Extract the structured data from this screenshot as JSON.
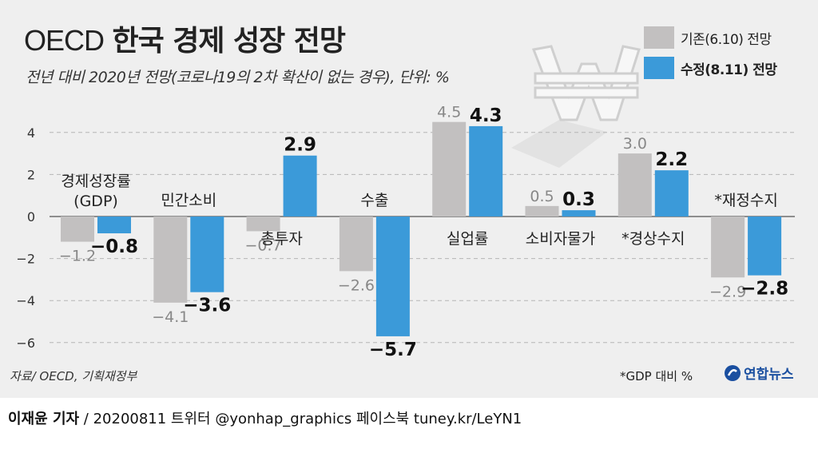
{
  "title_latin": "OECD",
  "title_korean": "한국 경제 성장 전망",
  "subtitle": "전년 대비 2020년 전망(코로나19의 2차 확산이 없는 경우), 단위: %",
  "legend": [
    {
      "label": "기존(6.10) 전망",
      "color": "#c2c0c0"
    },
    {
      "label": "수정(8.11) 전망",
      "color": "#3b9ad9"
    }
  ],
  "source": "자료/ OECD, 기획재정부",
  "note": "*GDP 대비 %",
  "brand": "연합뉴스",
  "brand_icon": "yonhap-logo-icon",
  "decoration_icon": "won-currency-icon",
  "footer": {
    "author": "이재윤 기자",
    "rest": " / 20200811   트위터 @yonhap_graphics  페이스북 tuney.kr/LeYN1"
  },
  "chart_data": {
    "type": "bar",
    "ylim": [
      -6,
      4
    ],
    "yticks": [
      "4",
      "2",
      "0",
      "−2",
      "−4",
      "−6"
    ],
    "grid": true,
    "categories": [
      "경제성장률\n(GDP)",
      "민간소비",
      "총투자",
      "수출",
      "실업률",
      "소비자물가",
      "*경상수지",
      "*재정수지"
    ],
    "series": [
      {
        "name": "기존(6.10) 전망",
        "color": "#c2c0c0",
        "values": [
          -1.2,
          -4.1,
          -0.7,
          -2.6,
          4.5,
          0.5,
          3.0,
          -2.9
        ],
        "labels": [
          "−1.2",
          "−4.1",
          "−0.7",
          "−2.6",
          "4.5",
          "0.5",
          "3.0",
          "−2.9"
        ]
      },
      {
        "name": "수정(8.11) 전망",
        "color": "#3b9ad9",
        "values": [
          -0.8,
          -3.6,
          2.9,
          -5.7,
          4.3,
          0.3,
          2.2,
          -2.8
        ],
        "labels": [
          "−0.8",
          "−3.6",
          "2.9",
          "−5.7",
          "4.3",
          "0.3",
          "2.2",
          "−2.8"
        ]
      }
    ]
  }
}
